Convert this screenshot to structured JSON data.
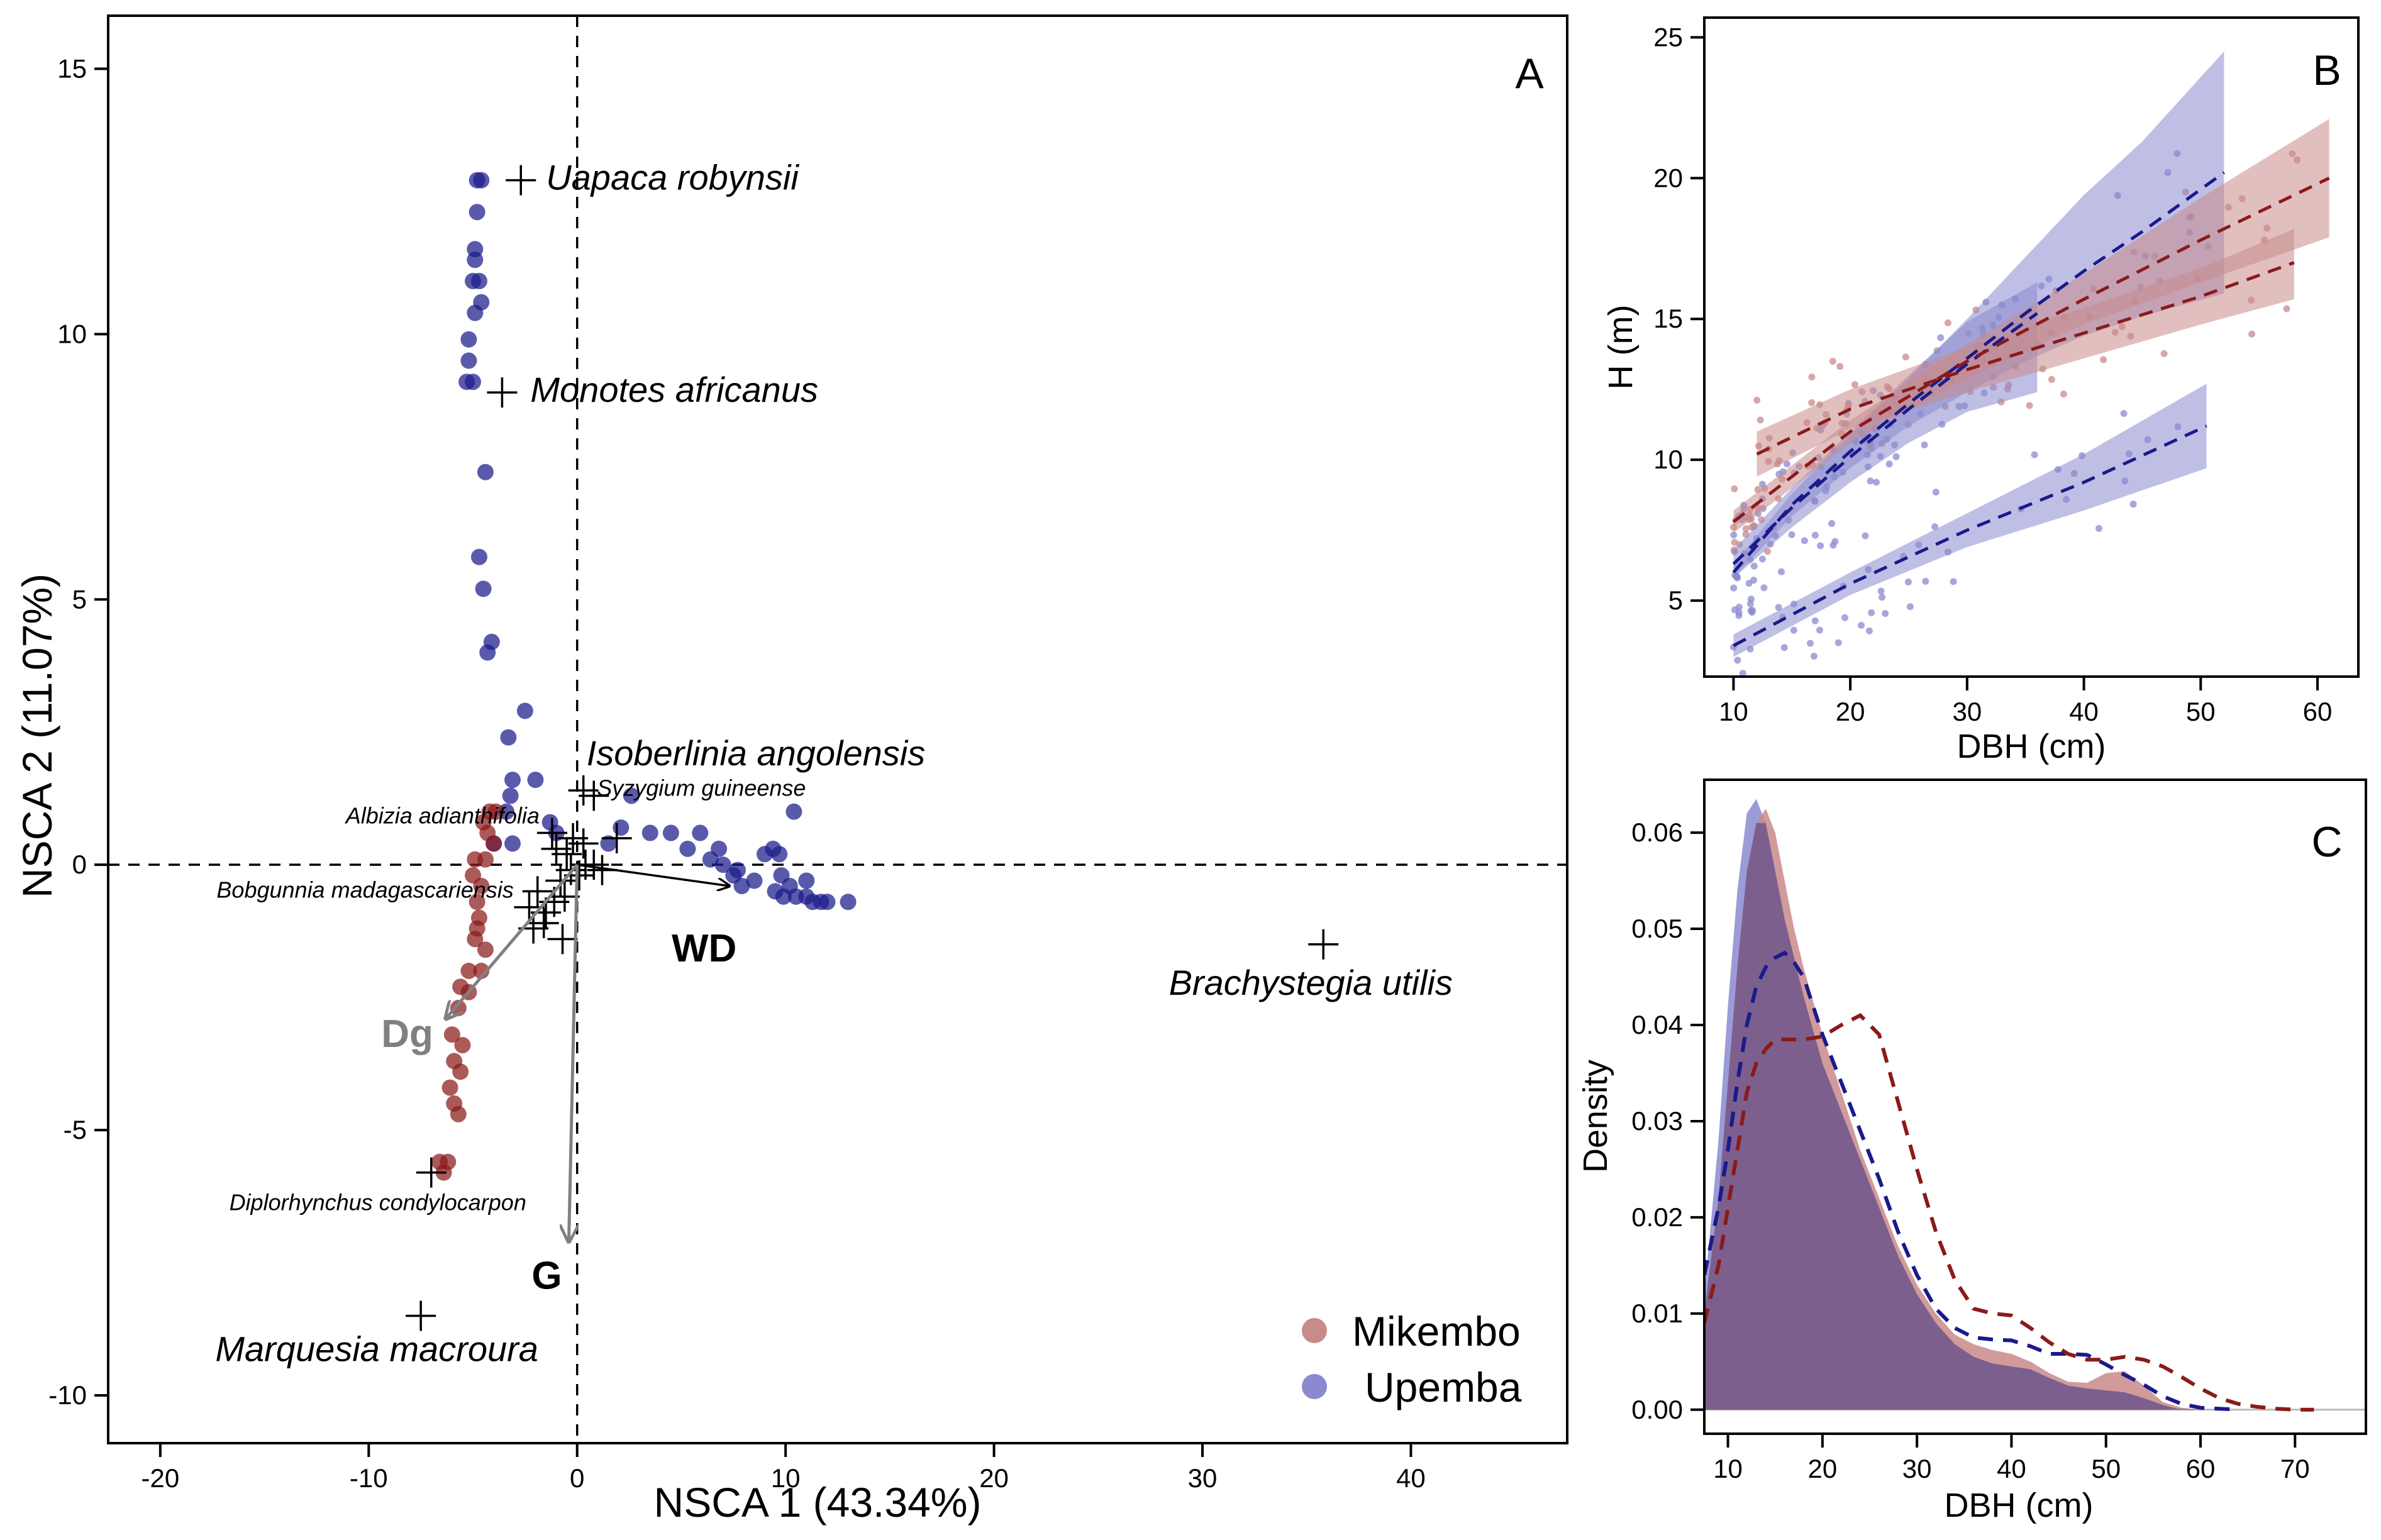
{
  "colors": {
    "mikembo": "#8b1a1a",
    "mikembo_light": "#c98a8a",
    "upemba": "#1a1a8b",
    "upemba_light": "#8a8ad0",
    "overlap": "#7d5f8e",
    "grey_arrow": "#808080"
  },
  "chart_data": [
    {
      "id": "A",
      "type": "scatter",
      "panel_label": "A",
      "xlabel": "NSCA 1 (43.34%)",
      "ylabel": "NSCA 2 (11.07%)",
      "xlim": [
        -22.5,
        47.5
      ],
      "ylim": [
        -10.9,
        16
      ],
      "x_ticks": [
        -20,
        -10,
        0,
        10,
        20,
        30,
        40
      ],
      "y_ticks": [
        -10,
        -5,
        0,
        5,
        10,
        15
      ],
      "reference_lines": {
        "x": 0,
        "y": 0,
        "style": "dashed"
      },
      "legend": {
        "position": "bottom-right",
        "entries": [
          "Mikembo",
          "Upemba"
        ]
      },
      "series": [
        {
          "name": "Upemba",
          "points": [
            [
              -4.8,
              12.9
            ],
            [
              -4.6,
              12.9
            ],
            [
              -4.8,
              12.3
            ],
            [
              -4.9,
              11.6
            ],
            [
              -4.9,
              11.4
            ],
            [
              -5.0,
              11.0
            ],
            [
              -4.7,
              11.0
            ],
            [
              -4.6,
              10.6
            ],
            [
              -4.9,
              10.4
            ],
            [
              -5.2,
              9.9
            ],
            [
              -5.2,
              9.5
            ],
            [
              -5.3,
              9.1
            ],
            [
              -5.0,
              9.1
            ],
            [
              -4.4,
              7.4
            ],
            [
              -4.7,
              5.8
            ],
            [
              -4.5,
              5.2
            ],
            [
              -4.1,
              4.2
            ],
            [
              -4.3,
              4.0
            ],
            [
              -2.5,
              2.9
            ],
            [
              -3.3,
              2.4
            ],
            [
              -3.1,
              1.6
            ],
            [
              -3.2,
              1.3
            ],
            [
              -3.4,
              1.0
            ],
            [
              -2.0,
              1.6
            ],
            [
              -3.1,
              0.4
            ],
            [
              -4.0,
              0.4
            ],
            [
              -1.3,
              0.8
            ],
            [
              -1.0,
              0.6
            ],
            [
              1.5,
              0.4
            ],
            [
              2.6,
              1.3
            ],
            [
              2.1,
              0.7
            ],
            [
              3.5,
              0.6
            ],
            [
              4.5,
              0.6
            ],
            [
              5.3,
              0.3
            ],
            [
              5.9,
              0.6
            ],
            [
              6.4,
              0.1
            ],
            [
              6.8,
              0.3
            ],
            [
              7.0,
              0.0
            ],
            [
              7.7,
              -0.1
            ],
            [
              7.5,
              -0.2
            ],
            [
              7.9,
              -0.4
            ],
            [
              8.5,
              -0.3
            ],
            [
              9.0,
              0.2
            ],
            [
              9.4,
              0.3
            ],
            [
              9.7,
              0.2
            ],
            [
              9.8,
              -0.2
            ],
            [
              9.5,
              -0.5
            ],
            [
              9.9,
              -0.6
            ],
            [
              10.2,
              -0.4
            ],
            [
              10.5,
              -0.6
            ],
            [
              11.0,
              -0.6
            ],
            [
              11.3,
              -0.7
            ],
            [
              11.7,
              -0.7
            ],
            [
              12.0,
              -0.7
            ],
            [
              13.0,
              -0.7
            ],
            [
              10.4,
              1.0
            ],
            [
              11.0,
              -0.3
            ]
          ]
        },
        {
          "name": "Mikembo",
          "points": [
            [
              -4.2,
              1.0
            ],
            [
              -3.9,
              1.0
            ],
            [
              -4.5,
              0.8
            ],
            [
              -4.3,
              0.6
            ],
            [
              -4.0,
              0.4
            ],
            [
              -4.9,
              0.1
            ],
            [
              -4.4,
              0.1
            ],
            [
              -5.0,
              -0.2
            ],
            [
              -4.6,
              -0.4
            ],
            [
              -4.8,
              -0.7
            ],
            [
              -4.7,
              -1.0
            ],
            [
              -4.8,
              -1.2
            ],
            [
              -4.9,
              -1.4
            ],
            [
              -4.4,
              -1.6
            ],
            [
              -4.6,
              -2.0
            ],
            [
              -5.2,
              -2.0
            ],
            [
              -5.6,
              -2.3
            ],
            [
              -5.2,
              -2.4
            ],
            [
              -5.7,
              -2.7
            ],
            [
              -6.0,
              -3.2
            ],
            [
              -5.5,
              -3.4
            ],
            [
              -5.9,
              -3.7
            ],
            [
              -5.6,
              -3.9
            ],
            [
              -6.1,
              -4.2
            ],
            [
              -5.9,
              -4.5
            ],
            [
              -5.7,
              -4.7
            ],
            [
              -6.2,
              -5.6
            ],
            [
              -6.4,
              -5.8
            ],
            [
              -6.6,
              -5.6
            ]
          ]
        }
      ],
      "species": [
        {
          "name": "Uapaca robynsii",
          "x": -2.7,
          "y": 12.9,
          "size": "large"
        },
        {
          "name": "Monotes africanus",
          "x": -3.6,
          "y": 8.9,
          "size": "large"
        },
        {
          "name": "Isoberlinia angolensis",
          "x": 0.3,
          "y": 1.4,
          "size": "large"
        },
        {
          "name": "Syzygium guineense",
          "x": 0.8,
          "y": 1.3,
          "size": "small"
        },
        {
          "name": "Albizia adianthifolia",
          "x": -1.2,
          "y": 0.6,
          "size": "small"
        },
        {
          "name": "Bobgunnia madagascariensis",
          "x": -1.9,
          "y": -0.5,
          "size": "small"
        },
        {
          "name": "Brachystegia utilis",
          "x": 35.8,
          "y": -1.5,
          "size": "large"
        },
        {
          "name": "Diplorhynchus condylocarpon",
          "x": -7.0,
          "y": -5.8,
          "size": "small"
        },
        {
          "name": "Marquesia macroura",
          "x": -7.5,
          "y": -8.5,
          "size": "large"
        }
      ],
      "extra_crosses": [
        [
          -0.5,
          0.2
        ],
        [
          -0.3,
          -0.1
        ],
        [
          0.1,
          -0.2
        ],
        [
          0.4,
          0.0
        ],
        [
          -0.8,
          -0.3
        ],
        [
          -1.1,
          -0.7
        ],
        [
          -1.6,
          -1.1
        ],
        [
          -2.1,
          -1.2
        ],
        [
          -1.5,
          -0.9
        ],
        [
          -0.7,
          -1.4
        ],
        [
          -0.2,
          0.5
        ],
        [
          0.8,
          0.0
        ],
        [
          1.2,
          -0.1
        ],
        [
          -0.6,
          -0.6
        ],
        [
          0.3,
          0.4
        ],
        [
          -1.0,
          0.3
        ],
        [
          1.9,
          0.5
        ],
        [
          -2.3,
          -0.8
        ]
      ],
      "vectors": [
        {
          "name": "WD",
          "x": 7.3,
          "y": -0.4,
          "color": "black"
        },
        {
          "name": "Dg",
          "x": -6.3,
          "y": -2.9,
          "color": "grey"
        },
        {
          "name": "G",
          "x": -0.4,
          "y": -7.1,
          "color": "grey"
        }
      ]
    },
    {
      "id": "B",
      "type": "line",
      "panel_label": "B",
      "xlabel": "DBH (cm)",
      "ylabel": "H (m)",
      "xlim": [
        7.5,
        63.5
      ],
      "ylim": [
        2.3,
        25.7
      ],
      "x_ticks": [
        10,
        20,
        30,
        40,
        50,
        60
      ],
      "y_ticks": [
        5,
        10,
        15,
        20,
        25
      ],
      "series": [
        {
          "name": "Upemba fit 1",
          "group": "Upemba",
          "x": [
            10,
            15,
            20,
            25,
            30,
            35,
            40,
            45,
            52
          ],
          "y": [
            6.0,
            8.4,
            10.3,
            12.0,
            13.6,
            15.2,
            16.7,
            18.1,
            20.2
          ],
          "lower": [
            5.8,
            8.0,
            9.7,
            11.2,
            12.4,
            13.5,
            14.4,
            15.1,
            15.9
          ],
          "upper": [
            6.3,
            8.8,
            10.9,
            12.9,
            15.0,
            17.2,
            19.4,
            21.3,
            24.5
          ]
        },
        {
          "name": "Upemba fit 2",
          "group": "Upemba",
          "x": [
            10,
            15,
            20,
            25,
            30,
            36
          ],
          "y": [
            6.3,
            8.3,
            10.1,
            11.8,
            13.4,
            15.2
          ],
          "lower": [
            5.8,
            7.6,
            9.2,
            10.6,
            11.7,
            12.4
          ],
          "upper": [
            6.8,
            9.0,
            11.0,
            13.0,
            14.9,
            16.3
          ]
        },
        {
          "name": "Upemba fit 3",
          "group": "Upemba",
          "x": [
            10,
            20,
            30,
            40,
            50.5
          ],
          "y": [
            3.4,
            5.6,
            7.5,
            9.2,
            11.2
          ],
          "lower": [
            3.0,
            5.2,
            6.9,
            8.2,
            9.7
          ],
          "upper": [
            3.8,
            6.0,
            8.1,
            10.2,
            12.7
          ]
        },
        {
          "name": "Mikembo fit 1",
          "group": "Mikembo",
          "x": [
            10,
            20,
            30,
            40,
            50,
            61
          ],
          "y": [
            7.8,
            11.0,
            13.5,
            15.7,
            17.8,
            20.0
          ],
          "lower": [
            7.4,
            10.6,
            12.9,
            14.8,
            16.3,
            17.9
          ],
          "upper": [
            8.2,
            11.4,
            14.1,
            16.6,
            19.3,
            22.1
          ]
        },
        {
          "name": "Mikembo fit 2",
          "group": "Mikembo",
          "x": [
            12,
            20,
            30,
            40,
            50,
            58
          ],
          "y": [
            10.2,
            11.8,
            13.2,
            14.5,
            15.8,
            17.0
          ],
          "lower": [
            9.4,
            11.1,
            12.4,
            13.6,
            14.8,
            15.7
          ],
          "upper": [
            11.0,
            12.5,
            14.0,
            15.4,
            16.8,
            18.2
          ]
        }
      ]
    },
    {
      "id": "C",
      "type": "area",
      "panel_label": "C",
      "xlabel": "DBH (cm)",
      "ylabel": "Density",
      "xlim": [
        7.5,
        77.5
      ],
      "ylim": [
        -0.0025,
        0.0655
      ],
      "x_ticks": [
        10,
        20,
        30,
        40,
        50,
        60,
        70
      ],
      "y_ticks": [
        0.0,
        0.01,
        0.02,
        0.03,
        0.04,
        0.05,
        0.06
      ],
      "y_tick_labels": [
        "0.00",
        "0.01",
        "0.02",
        "0.03",
        "0.04",
        "0.05",
        "0.06"
      ],
      "series": [
        {
          "name": "Upemba density",
          "style": "filled",
          "x": [
            7.5,
            9,
            10,
            11,
            12,
            13,
            14,
            15,
            16,
            17,
            18,
            20,
            22,
            24,
            26,
            28,
            30,
            32,
            34,
            36,
            38,
            40,
            42,
            44,
            46,
            48,
            50,
            52,
            54,
            56,
            57.5,
            60
          ],
          "y": [
            0.012,
            0.028,
            0.042,
            0.054,
            0.062,
            0.0635,
            0.061,
            0.056,
            0.051,
            0.047,
            0.043,
            0.036,
            0.031,
            0.026,
            0.021,
            0.016,
            0.012,
            0.009,
            0.0068,
            0.0055,
            0.0048,
            0.0045,
            0.0042,
            0.0033,
            0.0025,
            0.0022,
            0.002,
            0.0018,
            0.0012,
            0.0005,
            0.0001,
            0.0
          ]
        },
        {
          "name": "Mikembo density",
          "style": "filled",
          "x": [
            7.5,
            9,
            10,
            11,
            12,
            13,
            14,
            15,
            16,
            17,
            18,
            20,
            22,
            24,
            26,
            28,
            30,
            32,
            34,
            36,
            38,
            40,
            42,
            44,
            46,
            48,
            50,
            52,
            54,
            56,
            58,
            60
          ],
          "y": [
            0.01,
            0.022,
            0.034,
            0.046,
            0.056,
            0.061,
            0.0625,
            0.06,
            0.055,
            0.05,
            0.046,
            0.039,
            0.033,
            0.027,
            0.022,
            0.017,
            0.013,
            0.01,
            0.0078,
            0.0068,
            0.0062,
            0.0058,
            0.005,
            0.0038,
            0.0029,
            0.0028,
            0.0038,
            0.004,
            0.0025,
            0.0008,
            0.0002,
            0.0
          ]
        },
        {
          "name": "Upemba dashed",
          "style": "dashed",
          "x": [
            7.5,
            9,
            10,
            11,
            12,
            13,
            14,
            15,
            16,
            17,
            18,
            19,
            20,
            22,
            24,
            26,
            28,
            30,
            32,
            34,
            36,
            38,
            40,
            42,
            44,
            46,
            48,
            50,
            52,
            54,
            56,
            58,
            60,
            62,
            64
          ],
          "y": [
            0.014,
            0.021,
            0.027,
            0.034,
            0.04,
            0.044,
            0.046,
            0.047,
            0.0475,
            0.0465,
            0.045,
            0.042,
            0.039,
            0.034,
            0.029,
            0.024,
            0.0185,
            0.014,
            0.0105,
            0.0085,
            0.0075,
            0.0073,
            0.0072,
            0.0066,
            0.0058,
            0.0058,
            0.0057,
            0.0047,
            0.0036,
            0.0026,
            0.0014,
            0.0006,
            0.0002,
            0.0001,
            0.0
          ]
        },
        {
          "name": "Mikembo dashed",
          "style": "dashed",
          "x": [
            7.5,
            9,
            10,
            11,
            12,
            13,
            14,
            15,
            16,
            17,
            18,
            20,
            22,
            24,
            26,
            28,
            30,
            32,
            34,
            36,
            38,
            40,
            42,
            44,
            46,
            48,
            50,
            52,
            54,
            56,
            58,
            60,
            62,
            64,
            66,
            68,
            70,
            72
          ],
          "y": [
            0.009,
            0.015,
            0.021,
            0.027,
            0.033,
            0.036,
            0.0375,
            0.0385,
            0.0385,
            0.0385,
            0.0385,
            0.0388,
            0.04,
            0.041,
            0.039,
            0.032,
            0.025,
            0.0185,
            0.0135,
            0.0105,
            0.01,
            0.0098,
            0.0085,
            0.007,
            0.0058,
            0.0052,
            0.0052,
            0.0055,
            0.0052,
            0.0045,
            0.0034,
            0.0022,
            0.0012,
            0.0006,
            0.0003,
            0.0001,
            0.0,
            0.0
          ]
        }
      ]
    }
  ]
}
